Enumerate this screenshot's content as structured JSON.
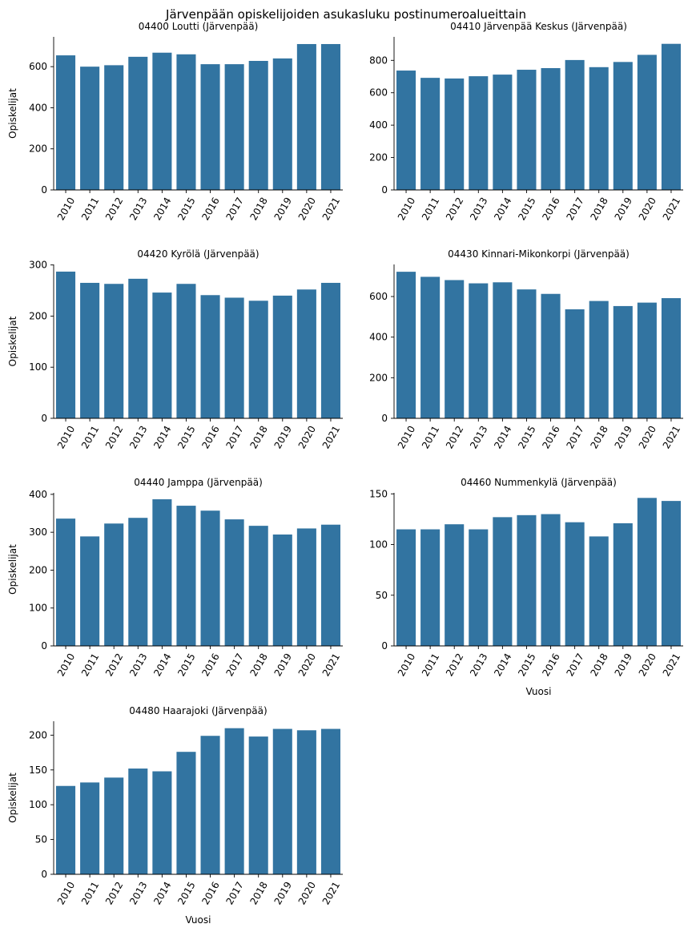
{
  "figure": {
    "title": "Järvenpään opiskelijoiden asukasluku postinumeroalueittain",
    "bar_color": "#3274a1"
  },
  "chart_data": [
    {
      "type": "bar",
      "title": "04400  Loutti (Järvenpää)",
      "categories": [
        "2010",
        "2011",
        "2012",
        "2013",
        "2014",
        "2015",
        "2016",
        "2017",
        "2018",
        "2019",
        "2020",
        "2021"
      ],
      "values": [
        655,
        600,
        607,
        648,
        668,
        660,
        612,
        612,
        628,
        640,
        710,
        710
      ],
      "ylim": [
        0,
        745
      ],
      "yticks": [
        0,
        200,
        400,
        600
      ],
      "xlabel": "",
      "ylabel": "Opiskelijat"
    },
    {
      "type": "bar",
      "title": "04410  Järvenpää Keskus (Järvenpää)",
      "categories": [
        "2010",
        "2011",
        "2012",
        "2013",
        "2014",
        "2015",
        "2016",
        "2017",
        "2018",
        "2019",
        "2020",
        "2021"
      ],
      "values": [
        737,
        692,
        688,
        702,
        712,
        742,
        752,
        802,
        758,
        790,
        834,
        902
      ],
      "ylim": [
        0,
        945
      ],
      "yticks": [
        0,
        200,
        400,
        600,
        800
      ],
      "xlabel": "",
      "ylabel": ""
    },
    {
      "type": "bar",
      "title": "04420  Kyrölä (Järvenpää)",
      "categories": [
        "2010",
        "2011",
        "2012",
        "2013",
        "2014",
        "2015",
        "2016",
        "2017",
        "2018",
        "2019",
        "2020",
        "2021"
      ],
      "values": [
        287,
        265,
        263,
        273,
        246,
        263,
        241,
        236,
        230,
        240,
        252,
        265
      ],
      "ylim": [
        0,
        301
      ],
      "yticks": [
        0,
        100,
        200,
        300
      ],
      "xlabel": "",
      "ylabel": "Opiskelijat"
    },
    {
      "type": "bar",
      "title": "04430  Kinnari-Mikonkorpi (Järvenpää)",
      "categories": [
        "2010",
        "2011",
        "2012",
        "2013",
        "2014",
        "2015",
        "2016",
        "2017",
        "2018",
        "2019",
        "2020",
        "2021"
      ],
      "values": [
        722,
        697,
        681,
        665,
        670,
        635,
        613,
        537,
        578,
        553,
        570,
        592
      ],
      "ylim": [
        0,
        758
      ],
      "yticks": [
        0,
        200,
        400,
        600
      ],
      "xlabel": "",
      "ylabel": ""
    },
    {
      "type": "bar",
      "title": "04440  Jamppa (Järvenpää)",
      "categories": [
        "2010",
        "2011",
        "2012",
        "2013",
        "2014",
        "2015",
        "2016",
        "2017",
        "2018",
        "2019",
        "2020",
        "2021"
      ],
      "values": [
        336,
        289,
        323,
        338,
        387,
        370,
        357,
        334,
        317,
        294,
        310,
        320
      ],
      "ylim": [
        0,
        404
      ],
      "yticks": [
        0,
        100,
        200,
        300,
        400
      ],
      "xlabel": "",
      "ylabel": "Opiskelijat"
    },
    {
      "type": "bar",
      "title": "04460  Nummenkylä (Järvenpää)",
      "categories": [
        "2010",
        "2011",
        "2012",
        "2013",
        "2014",
        "2015",
        "2016",
        "2017",
        "2018",
        "2019",
        "2020",
        "2021"
      ],
      "values": [
        115,
        115,
        120,
        115,
        127,
        129,
        130,
        122,
        108,
        121,
        146,
        143
      ],
      "ylim": [
        0,
        151
      ],
      "yticks": [
        0,
        50,
        100,
        150
      ],
      "xlabel": "Vuosi",
      "ylabel": ""
    },
    {
      "type": "bar",
      "title": "04480  Haarajoki (Järvenpää)",
      "categories": [
        "2010",
        "2011",
        "2012",
        "2013",
        "2014",
        "2015",
        "2016",
        "2017",
        "2018",
        "2019",
        "2020",
        "2021"
      ],
      "values": [
        127,
        132,
        139,
        152,
        148,
        176,
        199,
        210,
        198,
        209,
        207,
        209
      ],
      "ylim": [
        0,
        220
      ],
      "yticks": [
        0,
        50,
        100,
        150,
        200
      ],
      "xlabel": "Vuosi",
      "ylabel": "Opiskelijat"
    }
  ]
}
